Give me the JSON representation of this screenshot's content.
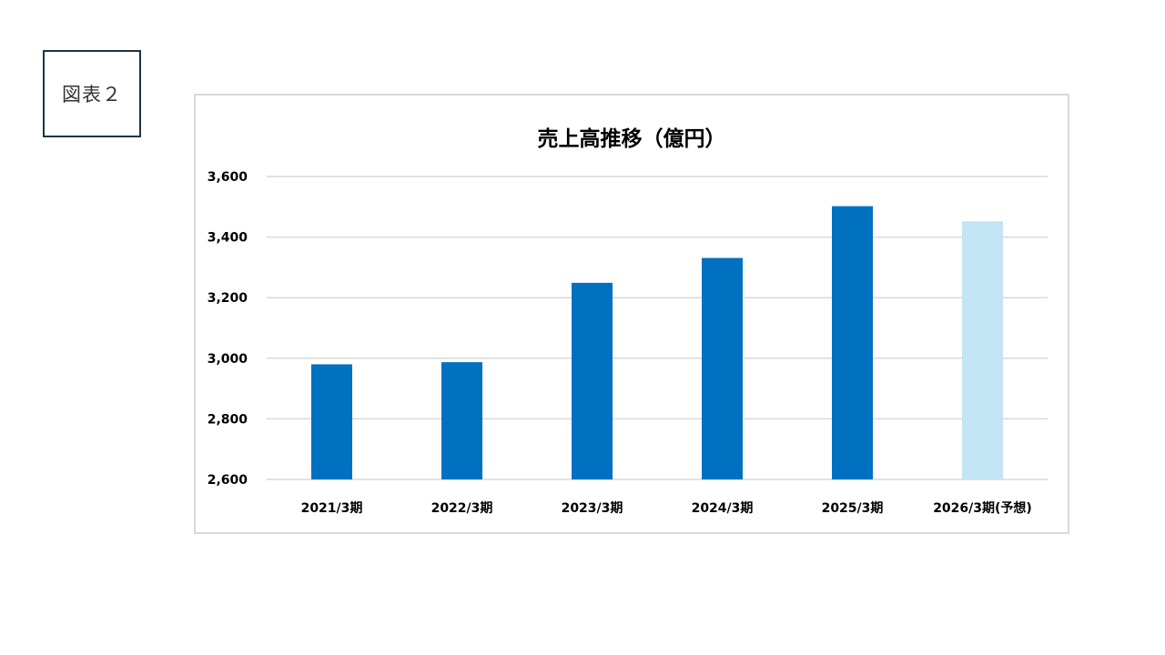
{
  "figure_label": "図表２",
  "chart_data": {
    "type": "bar",
    "title": "売上高推移（億円）",
    "xlabel": "",
    "ylabel": "",
    "categories": [
      "2021/3期",
      "2022/3期",
      "2023/3期",
      "2024/3期",
      "2025/3期",
      "2026/3期(予想)"
    ],
    "values": [
      2980,
      2987,
      3249,
      3331,
      3502,
      3452
    ],
    "forecast": [
      false,
      false,
      false,
      false,
      false,
      true
    ],
    "ylim": [
      2600,
      3600
    ],
    "yticks": [
      2600,
      2800,
      3000,
      3200,
      3400,
      3600
    ],
    "ytick_labels": [
      "2,600",
      "2,800",
      "3,000",
      "3,200",
      "3,400",
      "3,600"
    ],
    "grid": true,
    "legend": "none",
    "colors": {
      "actual": "#0070c0",
      "forecast": "#c2e4f4",
      "grid": "#d9d9d9"
    }
  }
}
